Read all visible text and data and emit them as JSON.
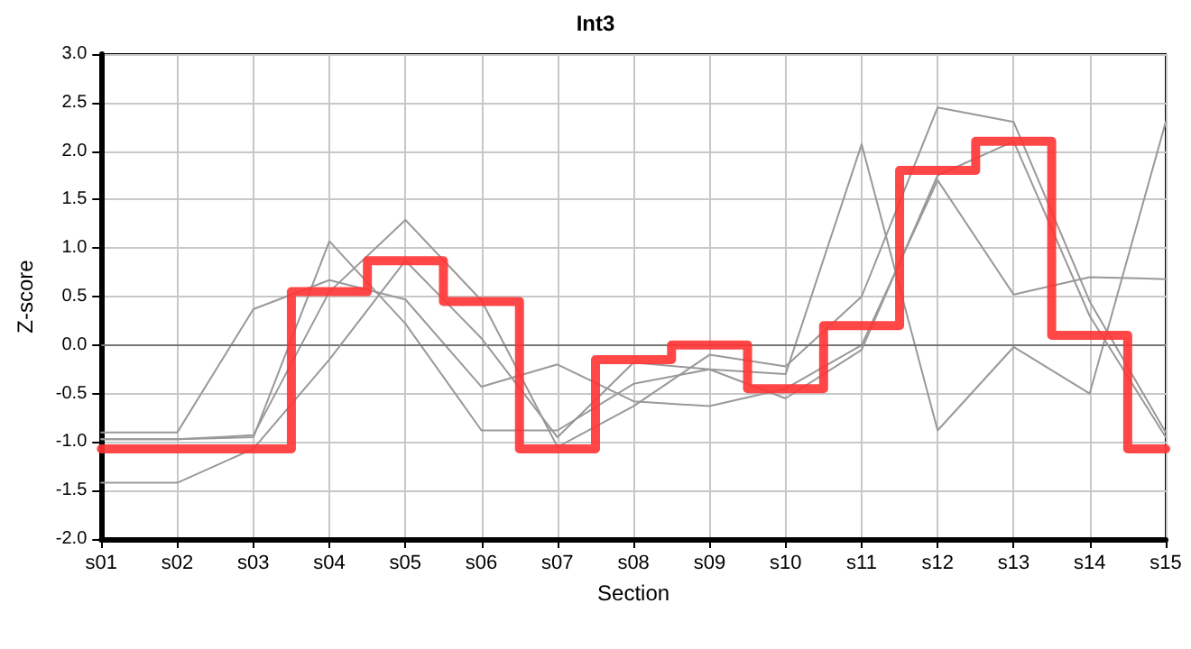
{
  "chart_data": {
    "type": "line",
    "title": "Int3",
    "xlabel": "Section",
    "ylabel": "Z-score",
    "categories": [
      "s01",
      "s02",
      "s03",
      "s04",
      "s05",
      "s06",
      "s07",
      "s08",
      "s09",
      "s10",
      "s11",
      "s12",
      "s13",
      "s14",
      "s15"
    ],
    "ylim": [
      -2,
      3
    ],
    "yticks": [
      {
        "value": -2,
        "label": "-2.0"
      },
      {
        "value": -1.5,
        "label": "-1.5"
      },
      {
        "value": -1,
        "label": "-1.0"
      },
      {
        "value": -0.5,
        "label": "-0.5"
      },
      {
        "value": 0,
        "label": "0.0"
      },
      {
        "value": 0.5,
        "label": "0.5"
      },
      {
        "value": 1,
        "label": "1.0"
      },
      {
        "value": 1.5,
        "label": "1.5"
      },
      {
        "value": 2,
        "label": "2.0"
      },
      {
        "value": 2.5,
        "label": "2.5"
      },
      {
        "value": 3,
        "label": "3.0"
      }
    ],
    "grid": true,
    "marker": "none",
    "line_style": "solid",
    "ref_lines": [
      {
        "axis": "y",
        "value": 0,
        "color": "#777777"
      }
    ],
    "series": [
      {
        "color": "#999999",
        "values": [
          -0.9,
          -0.9,
          0.37,
          0.67,
          0.47,
          -0.43,
          -0.2,
          -0.58,
          -0.63,
          -0.45,
          0.0,
          1.7,
          0.52,
          0.7,
          0.68
        ]
      },
      {
        "color": "#999999",
        "values": [
          -0.97,
          -0.97,
          -0.95,
          1.07,
          0.22,
          -0.88,
          -0.88,
          -0.4,
          -0.25,
          -0.3,
          2.07,
          -0.88,
          -0.02,
          -0.5,
          2.3
        ]
      },
      {
        "color": "#999999",
        "values": [
          -0.97,
          -0.97,
          -0.93,
          0.55,
          1.29,
          0.46,
          -1.05,
          -0.63,
          -0.1,
          -0.22,
          0.5,
          2.45,
          2.3,
          0.45,
          -0.9
        ]
      },
      {
        "color": "#999999",
        "values": [
          -1.42,
          -1.42,
          -1.07,
          -0.15,
          0.87,
          0.07,
          -0.95,
          -0.18,
          -0.25,
          -0.55,
          -0.05,
          1.75,
          2.1,
          0.3,
          -0.95
        ]
      },
      {
        "type": "step",
        "color": "#ff3333",
        "values": [
          -1.07,
          -1.07,
          -1.07,
          0.55,
          0.87,
          0.45,
          -1.07,
          -0.15,
          0.0,
          -0.45,
          0.2,
          1.8,
          2.1,
          0.1,
          -1.07
        ]
      }
    ]
  }
}
